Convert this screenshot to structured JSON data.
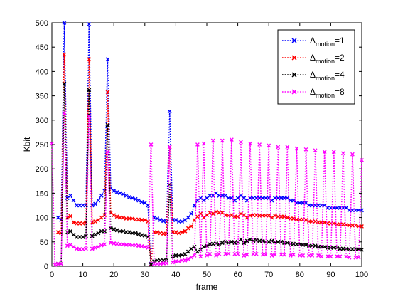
{
  "chart_data": {
    "type": "line",
    "xlabel": "frame",
    "ylabel": "Kbit",
    "xlim": [
      0,
      100
    ],
    "ylim": [
      0,
      500
    ],
    "xticks": [
      0,
      10,
      20,
      30,
      40,
      50,
      60,
      70,
      80,
      90,
      100
    ],
    "yticks": [
      0,
      50,
      100,
      150,
      200,
      250,
      300,
      350,
      400,
      450,
      500
    ],
    "grid": false,
    "legend_position": "top-right",
    "line_style": "dotted",
    "marker": "x",
    "x": [
      0,
      1,
      2,
      3,
      4,
      5,
      6,
      7,
      8,
      9,
      10,
      11,
      12,
      13,
      14,
      15,
      16,
      17,
      18,
      19,
      20,
      21,
      22,
      23,
      24,
      25,
      26,
      27,
      28,
      29,
      30,
      31,
      32,
      33,
      34,
      35,
      36,
      37,
      38,
      39,
      40,
      41,
      42,
      43,
      44,
      45,
      46,
      47,
      48,
      49,
      50,
      51,
      52,
      53,
      54,
      55,
      56,
      57,
      58,
      59,
      60,
      61,
      62,
      63,
      64,
      65,
      66,
      67,
      68,
      69,
      70,
      71,
      72,
      73,
      74,
      75,
      76,
      77,
      78,
      79,
      80,
      81,
      82,
      83,
      84,
      85,
      86,
      87,
      88,
      89,
      90,
      91,
      92,
      93,
      94,
      95,
      96,
      97,
      98,
      99,
      100
    ],
    "series": [
      {
        "name": "Δmotion=1",
        "legend_base": "Δ",
        "legend_sub": "motion",
        "legend_suffix": "=1",
        "color": "#0000ff",
        "values": [
          null,
          null,
          100,
          95,
          500,
          140,
          145,
          135,
          125,
          125,
          125,
          125,
          497,
          125,
          128,
          135,
          145,
          155,
          425,
          160,
          155,
          152,
          150,
          148,
          145,
          142,
          140,
          138,
          135,
          132,
          130,
          125,
          5,
          100,
          98,
          95,
          93,
          92,
          318,
          95,
          95,
          92,
          92,
          95,
          100,
          108,
          125,
          135,
          140,
          135,
          140,
          145,
          145,
          150,
          145,
          145,
          145,
          140,
          140,
          135,
          140,
          145,
          140,
          135,
          140,
          140,
          140,
          140,
          140,
          140,
          140,
          135,
          140,
          140,
          140,
          140,
          140,
          135,
          135,
          130,
          130,
          130,
          130,
          125,
          125,
          125,
          125,
          125,
          125,
          120,
          120,
          120,
          120,
          120,
          120,
          120,
          115,
          115,
          115,
          115,
          115
        ]
      },
      {
        "name": "Δmotion=2",
        "legend_base": "Δ",
        "legend_sub": "motion",
        "legend_suffix": "=2",
        "color": "#ff0000",
        "values": [
          null,
          null,
          70,
          68,
          435,
          100,
          103,
          90,
          88,
          88,
          88,
          90,
          425,
          90,
          92,
          95,
          100,
          105,
          358,
          110,
          105,
          102,
          100,
          100,
          98,
          98,
          98,
          96,
          96,
          95,
          95,
          92,
          4,
          70,
          70,
          68,
          67,
          66,
          245,
          70,
          70,
          68,
          70,
          72,
          78,
          82,
          95,
          102,
          108,
          100,
          105,
          110,
          108,
          112,
          110,
          110,
          105,
          104,
          105,
          102,
          102,
          108,
          105,
          100,
          104,
          105,
          105,
          104,
          104,
          104,
          104,
          100,
          104,
          102,
          102,
          102,
          100,
          98,
          98,
          96,
          96,
          96,
          95,
          92,
          92,
          92,
          90,
          90,
          90,
          88,
          88,
          88,
          86,
          86,
          86,
          85,
          84,
          84,
          84,
          82,
          82
        ]
      },
      {
        "name": "Δmotion=4",
        "legend_base": "Δ",
        "legend_sub": "motion",
        "legend_suffix": "=4",
        "color": "#000000",
        "values": [
          null,
          null,
          5,
          5,
          375,
          70,
          72,
          65,
          60,
          60,
          60,
          62,
          362,
          62,
          65,
          68,
          72,
          72,
          290,
          78,
          76,
          74,
          72,
          72,
          70,
          70,
          68,
          68,
          66,
          64,
          63,
          60,
          3,
          10,
          12,
          12,
          12,
          12,
          168,
          20,
          22,
          22,
          23,
          25,
          30,
          36,
          40,
          30,
          34,
          40,
          42,
          45,
          46,
          47,
          45,
          48,
          50,
          48,
          50,
          48,
          50,
          55,
          48,
          52,
          55,
          52,
          54,
          52,
          52,
          50,
          50,
          52,
          50,
          50,
          50,
          48,
          48,
          46,
          46,
          45,
          45,
          44,
          44,
          42,
          42,
          42,
          40,
          40,
          40,
          38,
          38,
          38,
          38,
          36,
          36,
          36,
          35,
          35,
          35,
          35,
          34
        ]
      },
      {
        "name": "Δmotion=8",
        "legend_base": "Δ",
        "legend_sub": "motion",
        "legend_suffix": "=8",
        "color": "#ff00ff",
        "values": [
          252,
          3,
          5,
          5,
          315,
          42,
          44,
          40,
          36,
          35,
          35,
          36,
          308,
          36,
          38,
          40,
          43,
          45,
          235,
          48,
          47,
          46,
          45,
          45,
          44,
          44,
          43,
          43,
          42,
          41,
          40,
          38,
          250,
          5,
          5,
          5,
          6,
          6,
          245,
          8,
          10,
          10,
          12,
          12,
          15,
          18,
          22,
          250,
          20,
          252,
          22,
          25,
          258,
          22,
          25,
          258,
          25,
          26,
          260,
          25,
          25,
          255,
          22,
          24,
          252,
          25,
          25,
          250,
          24,
          24,
          248,
          22,
          24,
          245,
          24,
          24,
          245,
          22,
          24,
          242,
          22,
          22,
          240,
          22,
          22,
          238,
          22,
          20,
          235,
          20,
          20,
          235,
          20,
          20,
          232,
          20,
          18,
          230,
          18,
          18,
          218
        ]
      }
    ]
  }
}
